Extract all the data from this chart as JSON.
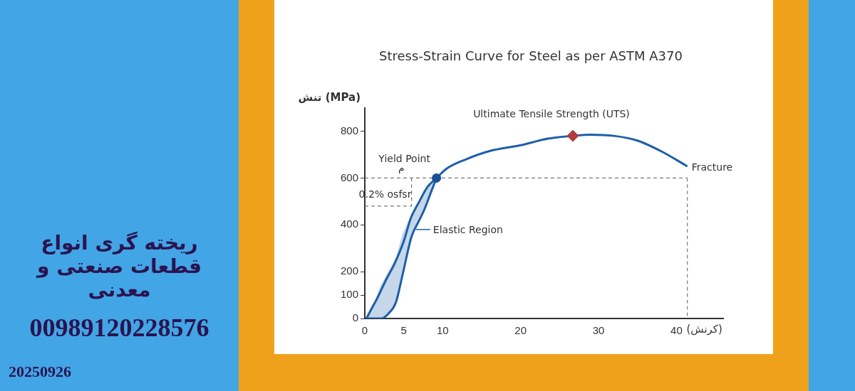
{
  "chart_data": {
    "type": "line",
    "title": "Stress-Strain Curve for Steel as per ASTM A370",
    "xlabel": "(کرنش)",
    "ylabel": "تنش (MPa)",
    "xlim": [
      0,
      46
    ],
    "xticks": [
      0,
      5,
      10,
      20,
      30,
      40
    ],
    "ylim": [
      0,
      900
    ],
    "yticks": [
      0,
      100,
      200,
      400,
      600,
      800
    ],
    "grid": false,
    "legend": false,
    "series": [
      {
        "color": "#1d5fa8",
        "marker": "none",
        "x": [
          0.2,
          1,
          1.5,
          2.8,
          3.8,
          5,
          5.9,
          7,
          8,
          9.2,
          10.5,
          13,
          16,
          20,
          23.5,
          26.7,
          29,
          32,
          35,
          38,
          41.4
        ],
        "values": [
          0,
          50,
          80,
          170,
          233,
          330,
          428,
          500,
          560,
          600,
          640,
          680,
          715,
          740,
          768,
          780,
          785,
          780,
          760,
          715,
          650
        ]
      },
      {
        "color": "#1d5fa8",
        "marker": "none",
        "x": [
          0.2,
          1,
          2,
          2.1,
          3,
          4,
          4.8,
          6,
          7,
          7.7,
          8.5,
          9.2
        ],
        "values": [
          0,
          0,
          0,
          0,
          20,
          70,
          180,
          350,
          420,
          470,
          540,
          600
        ],
        "lower": [
          0,
          0,
          0,
          0,
          20,
          70,
          180,
          350,
          420,
          470,
          540,
          600
        ],
        "upper": [
          0,
          50,
          140,
          145,
          200,
          260,
          360,
          445,
          500,
          540,
          575,
          600
        ]
      },
      {
        "type": "scatter",
        "color": "#1a4f94",
        "marker": "circle",
        "x": [
          9.2
        ],
        "values": [
          600
        ]
      },
      {
        "type": "scatter",
        "color": "#b23c3c",
        "marker": "diamond",
        "x": [
          26.7
        ],
        "values": [
          780
        ]
      },
      {
        "type": "line",
        "color": "#777777",
        "line_style": "dashed",
        "marker": "none",
        "x": [
          0,
          41.4
        ],
        "values": [
          600,
          600
        ]
      },
      {
        "type": "line",
        "color": "#777777",
        "line_style": "dashed",
        "marker": "none",
        "x": [
          41.4,
          41.4
        ],
        "values": [
          600,
          0
        ]
      },
      {
        "type": "line",
        "color": "#777777",
        "line_style": "dashed",
        "marker": "none",
        "x": [
          0,
          6
        ],
        "values": [
          480,
          480
        ]
      },
      {
        "type": "line",
        "color": "#777777",
        "line_style": "dashed",
        "marker": "none",
        "x": [
          6,
          6
        ],
        "values": [
          600,
          480
        ]
      }
    ],
    "annotations": [
      {
        "text": "Ultimate Tensile Strength (UTS)",
        "x": 26.7,
        "y": 780
      },
      {
        "text": "Yield Point",
        "x": 9.2,
        "y": 600
      },
      {
        "text": "Fracture",
        "x": 41.4,
        "y": 650
      },
      {
        "text": "Elastic Region",
        "x": 6.2,
        "y": 380
      },
      "0.2% osfsr",
      "م",
      "ریخته گری انواع قطعات صنعتی و معدنی",
      "00989120228576",
      "20250926"
    ]
  }
}
